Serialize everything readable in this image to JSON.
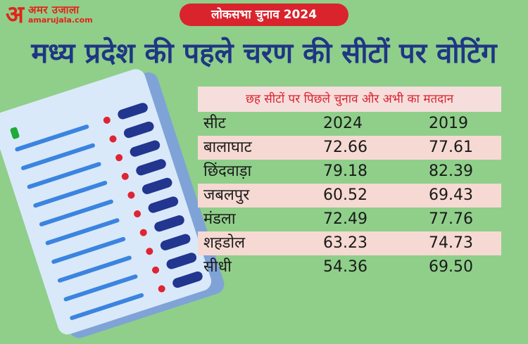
{
  "logo": {
    "symbol": "अ",
    "brand": "अमर उजाला",
    "site": "amarujala.com"
  },
  "badge": "लोकसभा चुनाव 2024",
  "headline": "मध्य प्रदेश की पहले चरण की सीटों पर वोटिंग",
  "table": {
    "caption": "छह सीटों पर पिछले चुनाव और अभी का मतदान",
    "headers": [
      "सीट",
      "2024",
      "2019"
    ],
    "rows": [
      {
        "seat": "बालाघाट",
        "y2024": "72.66",
        "y2019": "77.61"
      },
      {
        "seat": "छिंदवाड़ा",
        "y2024": "79.18",
        "y2019": "82.39"
      },
      {
        "seat": "जबलपुर",
        "y2024": "60.52",
        "y2019": "69.43"
      },
      {
        "seat": "मंडला",
        "y2024": "72.49",
        "y2019": "77.76"
      },
      {
        "seat": "शहडोल",
        "y2024": "63.23",
        "y2019": "74.73"
      },
      {
        "seat": "सीधी",
        "y2024": "54.36",
        "y2019": "69.50"
      }
    ]
  },
  "colors": {
    "background": "#8fcf8a",
    "accent_red": "#d9232d",
    "headline_blue": "#1f3684",
    "row_pink": "#f6d9d3"
  },
  "illustration": {
    "icon": "ballot-paper-icon"
  }
}
